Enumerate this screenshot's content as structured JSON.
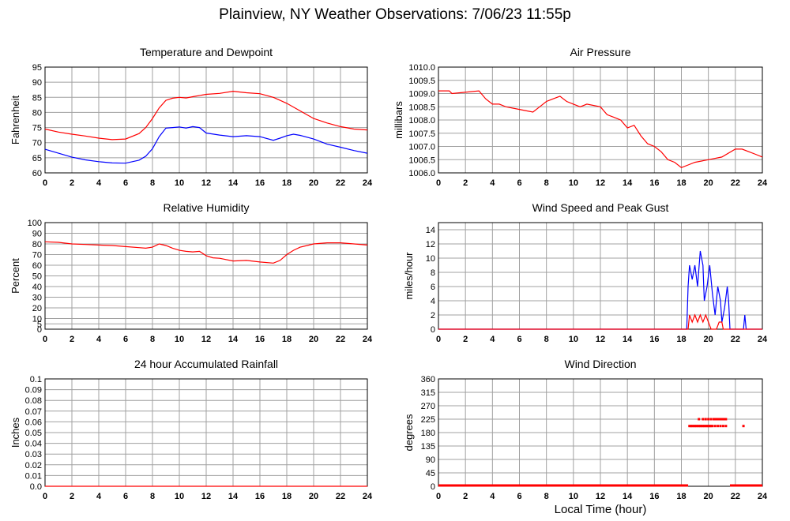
{
  "page": {
    "title": "Plainview, NY Weather Observations: 7/06/23 11:55p",
    "xlabel": "Local Time (hour)"
  },
  "chart_data": [
    {
      "id": "temp",
      "type": "line",
      "title": "Temperature and Dewpoint",
      "ylabel": "Fahrenheit",
      "xlim": [
        0,
        24
      ],
      "ylim": [
        60,
        95
      ],
      "x_ticks": [
        0,
        2,
        4,
        6,
        8,
        10,
        12,
        14,
        16,
        18,
        20,
        22,
        24
      ],
      "y_ticks": [
        "60",
        "65",
        "70",
        "75",
        "80",
        "85",
        "90",
        "95"
      ],
      "grid": true,
      "series": [
        {
          "color": "#ff0000",
          "x": [
            0,
            1,
            2,
            3,
            4,
            5,
            6,
            7,
            7.5,
            8,
            8.5,
            9,
            9.5,
            10,
            10.5,
            11,
            12,
            13,
            14,
            15,
            16,
            17,
            17.5,
            18,
            19,
            20,
            21,
            22,
            23,
            24
          ],
          "y": [
            74.5,
            73.5,
            72.8,
            72.2,
            71.5,
            71,
            71.2,
            73,
            75,
            78,
            81.5,
            84,
            84.7,
            85,
            84.8,
            85.2,
            86,
            86.3,
            87,
            86.5,
            86.2,
            85,
            84,
            83,
            80.5,
            78,
            76.5,
            75.3,
            74.5,
            74.2
          ]
        },
        {
          "color": "#0000ff",
          "x": [
            0,
            1,
            2,
            3,
            4,
            5,
            6,
            7,
            7.5,
            8,
            8.5,
            9,
            9.5,
            10,
            10.5,
            11,
            11.5,
            12,
            13,
            14,
            15,
            16,
            17,
            17.5,
            18,
            18.5,
            19,
            20,
            21,
            22,
            23,
            24
          ],
          "y": [
            67.8,
            66.5,
            65.2,
            64.3,
            63.7,
            63.3,
            63.2,
            64.2,
            65.5,
            68,
            72,
            74.8,
            75,
            75.2,
            74.8,
            75.3,
            75,
            73.2,
            72.5,
            72,
            72.3,
            72,
            70.8,
            71.5,
            72.3,
            72.8,
            72.4,
            71.2,
            69.5,
            68.5,
            67.4,
            66.5
          ]
        }
      ]
    },
    {
      "id": "pressure",
      "type": "line",
      "title": "Air Pressure",
      "ylabel": "millibars",
      "xlim": [
        0,
        24
      ],
      "ylim": [
        1006.0,
        1010.0
      ],
      "x_ticks": [
        0,
        2,
        4,
        6,
        8,
        10,
        12,
        14,
        16,
        18,
        20,
        22,
        24
      ],
      "y_ticks": [
        "1006.0",
        "1006.5",
        "1007.0",
        "1007.5",
        "1008.0",
        "1008.5",
        "1009.0",
        "1009.5",
        "1010.0"
      ],
      "grid": true,
      "series": [
        {
          "color": "#ff0000",
          "x": [
            0,
            0.8,
            1,
            3,
            3.5,
            4,
            4.5,
            5,
            6,
            7,
            7.5,
            8,
            8.5,
            9,
            9.5,
            10,
            10.5,
            11,
            12,
            12.5,
            13,
            13.5,
            14,
            14.5,
            15,
            15.5,
            16,
            16.5,
            17,
            17.5,
            18,
            18.5,
            19,
            20,
            21,
            22,
            22.5,
            23,
            23.5,
            24
          ],
          "y": [
            1009.1,
            1009.1,
            1009.0,
            1009.1,
            1008.8,
            1008.6,
            1008.6,
            1008.5,
            1008.4,
            1008.3,
            1008.5,
            1008.7,
            1008.8,
            1008.9,
            1008.7,
            1008.6,
            1008.5,
            1008.6,
            1008.5,
            1008.2,
            1008.1,
            1008.0,
            1007.7,
            1007.8,
            1007.4,
            1007.1,
            1007.0,
            1006.8,
            1006.5,
            1006.4,
            1006.2,
            1006.3,
            1006.4,
            1006.5,
            1006.6,
            1006.9,
            1006.9,
            1006.8,
            1006.7,
            1006.6
          ]
        }
      ]
    },
    {
      "id": "humidity",
      "type": "line",
      "title": "Relative Humidity",
      "ylabel": "Percent",
      "xlim": [
        0,
        24
      ],
      "ylim": [
        0,
        100
      ],
      "x_ticks": [
        0,
        2,
        4,
        6,
        8,
        10,
        12,
        14,
        16,
        18,
        20,
        22,
        24
      ],
      "y_ticks": [
        "0",
        "5",
        "10",
        "20",
        "30",
        "40",
        "50",
        "60",
        "70",
        "80",
        "90",
        "100"
      ],
      "grid": true,
      "series": [
        {
          "color": "#ff0000",
          "x": [
            0,
            1,
            2,
            3,
            4,
            5,
            6,
            7,
            7.5,
            8,
            8.5,
            9,
            9.5,
            10,
            10.5,
            11,
            11.5,
            12,
            12.5,
            13,
            14,
            15,
            16,
            17,
            17.5,
            18,
            18.5,
            19,
            20,
            21,
            22,
            23,
            24
          ],
          "y": [
            82,
            81.5,
            80,
            79.5,
            79,
            78.5,
            77.5,
            76.5,
            76,
            77,
            80,
            78.5,
            76,
            74,
            73,
            72.5,
            73,
            69,
            67,
            66.5,
            64,
            64.5,
            63,
            62,
            64.5,
            70,
            74,
            77,
            80,
            81,
            81,
            80,
            79
          ]
        }
      ]
    },
    {
      "id": "wind",
      "type": "line",
      "title": "Wind Speed and Peak Gust",
      "ylabel": "miles/hour",
      "xlim": [
        0,
        24
      ],
      "ylim": [
        0,
        15
      ],
      "x_ticks": [
        0,
        2,
        4,
        6,
        8,
        10,
        12,
        14,
        16,
        18,
        20,
        22,
        24
      ],
      "y_ticks": [
        "0",
        "2",
        "4",
        "6",
        "8",
        "10",
        "12",
        "14"
      ],
      "grid": true,
      "series": [
        {
          "color": "#0000ff",
          "x": [
            0,
            18.4,
            18.5,
            18.6,
            18.8,
            19.0,
            19.2,
            19.4,
            19.6,
            19.7,
            19.9,
            20.1,
            20.3,
            20.5,
            20.7,
            20.9,
            21.0,
            21.2,
            21.4,
            21.5,
            21.6,
            22.6,
            22.7,
            22.8,
            24
          ],
          "y": [
            0,
            0,
            6,
            9,
            7,
            9,
            6,
            11,
            9,
            4,
            6,
            9,
            5,
            2,
            6,
            4,
            1,
            3,
            6,
            4,
            0,
            0,
            2,
            0,
            0
          ]
        },
        {
          "color": "#ff0000",
          "x": [
            0,
            18.5,
            18.6,
            18.8,
            19.0,
            19.2,
            19.4,
            19.6,
            19.8,
            20.0,
            20.2,
            20.4,
            20.6,
            20.8,
            21.0,
            21.1,
            21.3,
            24
          ],
          "y": [
            0,
            0,
            2,
            1,
            2,
            1,
            2,
            1,
            2,
            1,
            0,
            0,
            0,
            1,
            1,
            0,
            0,
            0
          ]
        }
      ]
    },
    {
      "id": "rain",
      "type": "line",
      "title": "24 hour Accumulated Rainfall",
      "ylabel": "Inches",
      "xlim": [
        0,
        24
      ],
      "ylim": [
        0,
        0.1
      ],
      "x_ticks": [
        0,
        2,
        4,
        6,
        8,
        10,
        12,
        14,
        16,
        18,
        20,
        22,
        24
      ],
      "y_ticks": [
        "0.0",
        "0.01",
        "0.02",
        "0.03",
        "0.04",
        "0.05",
        "0.06",
        "0.07",
        "0.08",
        "0.09",
        "0.1"
      ],
      "grid": true,
      "series": [
        {
          "color": "#ff0000",
          "x": [
            0,
            24
          ],
          "y": [
            0,
            0
          ]
        }
      ]
    },
    {
      "id": "direction",
      "type": "scatter",
      "title": "Wind Direction",
      "ylabel": "degrees",
      "xlim": [
        0,
        24
      ],
      "ylim": [
        0,
        360
      ],
      "x_ticks": [
        0,
        2,
        4,
        6,
        8,
        10,
        12,
        14,
        16,
        18,
        20,
        22,
        24
      ],
      "y_ticks": [
        "0",
        "45",
        "90",
        "135",
        "180",
        "225",
        "270",
        "315",
        "360"
      ],
      "grid": true,
      "baseline": {
        "color": "#ff0000",
        "segments": [
          [
            0,
            18.5
          ],
          [
            21.6,
            24
          ]
        ]
      },
      "series": [
        {
          "color": "#ff0000",
          "x": [
            18.6,
            18.7,
            18.8,
            18.9,
            19.0,
            19.1,
            19.2,
            19.3,
            19.4,
            19.5,
            19.6,
            19.7,
            19.8,
            19.9,
            20.0,
            20.1,
            20.2,
            20.3,
            20.5,
            20.7,
            20.9,
            21.1,
            21.3,
            22.6
          ],
          "y": [
            202,
            202,
            202,
            202,
            202,
            202,
            202,
            202,
            202,
            202,
            202,
            202,
            202,
            202,
            202,
            202,
            202,
            202,
            202,
            202,
            202,
            202,
            202,
            202
          ]
        },
        {
          "color": "#ff0000",
          "x": [
            19.3,
            19.6,
            19.8,
            20.0,
            20.2,
            20.4,
            20.5,
            20.6,
            20.7,
            20.8,
            20.9,
            21.0,
            21.1,
            21.2,
            21.3
          ],
          "y": [
            225,
            225,
            225,
            225,
            225,
            225,
            225,
            225,
            225,
            225,
            225,
            225,
            225,
            225,
            225
          ]
        }
      ]
    }
  ]
}
